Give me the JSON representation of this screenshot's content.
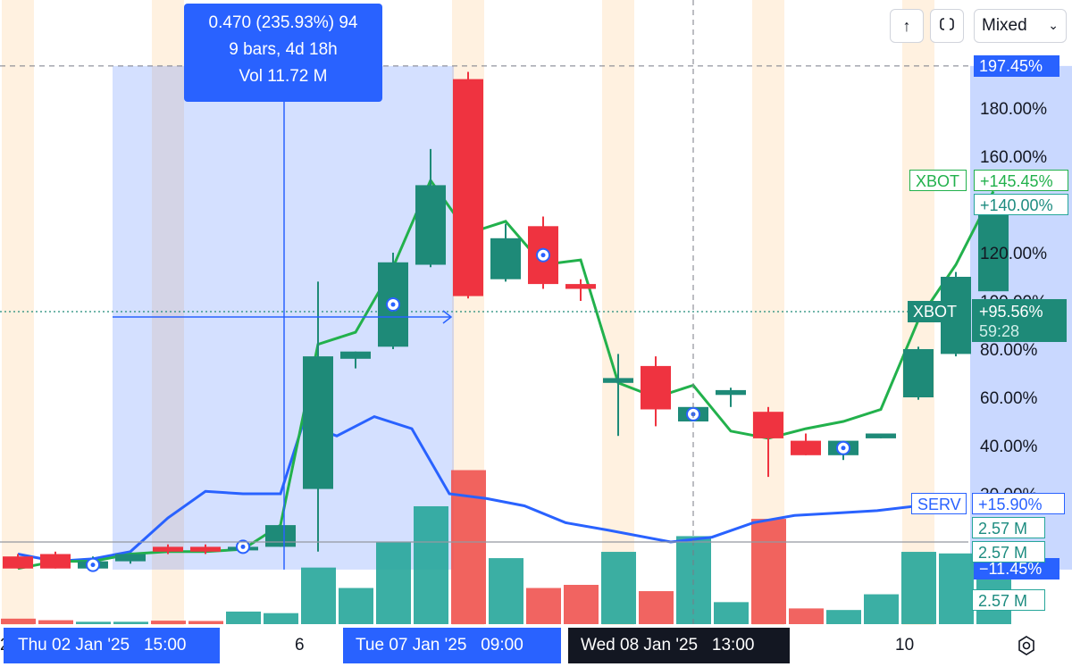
{
  "toolbar": {
    "arrow_icon": "arrow-up-icon",
    "fit_icon": "fit-screen-icon",
    "scale_mode": "Mixed",
    "settings_icon": "gear-icon"
  },
  "measure": {
    "line1": "0.470 (235.93%) 94",
    "line2": "9 bars, 4d 18h",
    "line3": "Vol 11.72 M"
  },
  "price_axis": {
    "ticks": [
      "180.00%",
      "160.00%",
      "140.00%",
      "120.00%",
      "100.00%",
      "80.00%",
      "60.00%",
      "40.00%",
      "20.00%"
    ],
    "measure_top_label": "197.45%",
    "measure_bottom_label": "−11.45%"
  },
  "series_labels": {
    "xbot_line_name": "XBOT",
    "xbot_line_value": "+145.45%",
    "xbot_last_value": "+140.00%",
    "xbot_main_name": "XBOT",
    "xbot_main_value": "+95.56%",
    "countdown": "59:28",
    "serv_name": "SERV",
    "serv_value": "+15.90%",
    "vol1": "2.57 M",
    "vol2": "2.57 M",
    "vol3": "2.57 M"
  },
  "time_axis": {
    "label_left": "Thu 02 Jan '25   15:00",
    "label_6": "6",
    "label_mid": "Tue 07 Jan '25   09:00",
    "label_cursor": "Wed 08 Jan '25   13:00",
    "label_10": "10",
    "cut_left": "2"
  },
  "colors": {
    "up": "#26a69a",
    "down": "#ef5350",
    "xbot_line": "#22b14c",
    "serv_line": "#2962ff",
    "measure": "#2962ff",
    "session_bg": "#fff1e0"
  },
  "chart_data": {
    "type": "candlestick",
    "title": "",
    "ylabel": "",
    "yscale": "percent",
    "ylim": [
      -18,
      205
    ],
    "grid": false,
    "candles": [
      {
        "o": -6,
        "h": -5,
        "l": -11,
        "c": -11,
        "vol": 0.35
      },
      {
        "o": -5,
        "h": -4,
        "l": -11,
        "c": -11,
        "vol": 0.25
      },
      {
        "o": -11,
        "h": -6,
        "l": -12,
        "c": -8,
        "vol": 0.15
      },
      {
        "o": -8,
        "h": -5,
        "l": -9,
        "c": -5,
        "vol": 0.15
      },
      {
        "o": -2,
        "h": -1,
        "l": -5,
        "c": -4,
        "vol": 0.22
      },
      {
        "o": -2,
        "h": -1,
        "l": -5,
        "c": -4,
        "vol": 0.2
      },
      {
        "o": -2,
        "h": -1,
        "l": -4,
        "c": -2,
        "vol": 0.8
      },
      {
        "o": -2,
        "h": 7,
        "l": -2,
        "c": 7,
        "vol": 0.7
      },
      {
        "o": 22,
        "h": 108,
        "l": -4,
        "c": 77,
        "vol": 3.6
      },
      {
        "o": 76,
        "h": 79,
        "l": 72,
        "c": 79,
        "vol": 2.3
      },
      {
        "o": 81,
        "h": 120,
        "l": 80,
        "c": 116,
        "vol": 5.2
      },
      {
        "o": 115,
        "h": 163,
        "l": 114,
        "c": 148,
        "vol": 7.5
      },
      {
        "o": 192,
        "h": 195,
        "l": 101,
        "c": 102,
        "vol": 9.8
      },
      {
        "o": 109,
        "h": 132,
        "l": 108,
        "c": 126,
        "vol": 4.2
      },
      {
        "o": 131,
        "h": 135,
        "l": 105,
        "c": 107,
        "vol": 2.3
      },
      {
        "o": 107,
        "h": 109,
        "l": 100,
        "c": 105,
        "vol": 2.5
      },
      {
        "o": 66,
        "h": 78,
        "l": 44,
        "c": 68,
        "vol": 4.6
      },
      {
        "o": 73,
        "h": 77,
        "l": 48,
        "c": 55,
        "vol": 2.1
      },
      {
        "o": 50,
        "h": 56,
        "l": 50,
        "c": 56,
        "vol": 5.6
      },
      {
        "o": 61,
        "h": 64,
        "l": 56,
        "c": 63,
        "vol": 1.4
      },
      {
        "o": 54,
        "h": 56,
        "l": 27,
        "c": 43,
        "vol": 6.7
      },
      {
        "o": 42,
        "h": 45,
        "l": 36,
        "c": 36,
        "vol": 1.0
      },
      {
        "o": 36,
        "h": 42,
        "l": 34,
        "c": 42,
        "vol": 0.9
      },
      {
        "o": 43,
        "h": 45,
        "l": 43,
        "c": 45,
        "vol": 1.9
      },
      {
        "o": 60,
        "h": 81,
        "l": 59,
        "c": 80,
        "vol": 4.6
      },
      {
        "o": 78,
        "h": 112,
        "l": 77,
        "c": 110,
        "vol": 4.5
      },
      {
        "o": 104,
        "h": 140,
        "l": 104,
        "c": 137,
        "vol": 4.3
      }
    ],
    "markers_on_candles": [
      2,
      6,
      10,
      14,
      18,
      22
    ],
    "xbot_line": [
      -11,
      -8,
      -8,
      -5,
      -4,
      -4,
      -3,
      7,
      82,
      87,
      114,
      150,
      128,
      133,
      115,
      117,
      66,
      60,
      65,
      46,
      43,
      47,
      50,
      55,
      92,
      115,
      145.45
    ],
    "serv_line": [
      -5,
      -8,
      -7,
      -4,
      10,
      21,
      20,
      20,
      49,
      44,
      52,
      47,
      20,
      18,
      15,
      8,
      5,
      0,
      2,
      8,
      11,
      12,
      13,
      15,
      15.9
    ],
    "serv_x": [
      0,
      1,
      2,
      3,
      4,
      5,
      6,
      7,
      7.6,
      8.5,
      9.5,
      10.5,
      11.5,
      12.5,
      13.5,
      14.6,
      15.7,
      17.4,
      18.5,
      19.6,
      20.7,
      21.8,
      22.9,
      24,
      25.2
    ],
    "measure_range": {
      "from_bar": 3,
      "to_bar": 12,
      "top": 197.45,
      "bottom": -11.45
    },
    "crosshair_bar": 18,
    "xbot_last_price_line": 95.56,
    "session_bars": [
      0,
      4,
      12,
      16,
      20,
      24
    ]
  }
}
